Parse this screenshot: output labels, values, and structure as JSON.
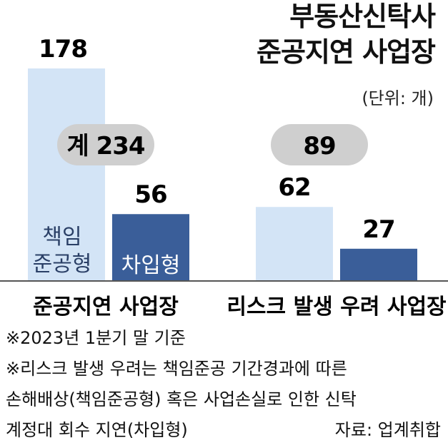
{
  "title_line1": "부동산신탁사",
  "title_line2": "준공지연 사업장",
  "unit": "(단위: 개)",
  "colors": {
    "light_bar": "#d3e4f6",
    "dark_bar": "#3a5e99",
    "pill": "#cfcfcf",
    "baseline": "#555555"
  },
  "chart_data": {
    "type": "bar",
    "categories": [
      "준공지연 사업장",
      "리스크 발생 우려 사업장"
    ],
    "series": [
      {
        "name": "책임준공형",
        "values": [
          178,
          62
        ]
      },
      {
        "name": "차입형",
        "values": [
          56,
          27
        ]
      }
    ],
    "in_bar_labels": {
      "책임준공형": "책임 준공형",
      "차입형": "차입형"
    },
    "totals": [
      "계 234",
      "89"
    ],
    "ylim": [
      0,
      178
    ],
    "legend": "in-bar labels",
    "grid": false
  },
  "notes": [
    "※2023년 1분기 말 기준",
    "※리스크 발생 우려는 책임준공 기간경과에 따른",
    "손해배상(책임준공형) 혹은 사업손실로 인한 신탁",
    "계정대 회수 지연(차입형)"
  ],
  "source": "자료: 업계취합"
}
